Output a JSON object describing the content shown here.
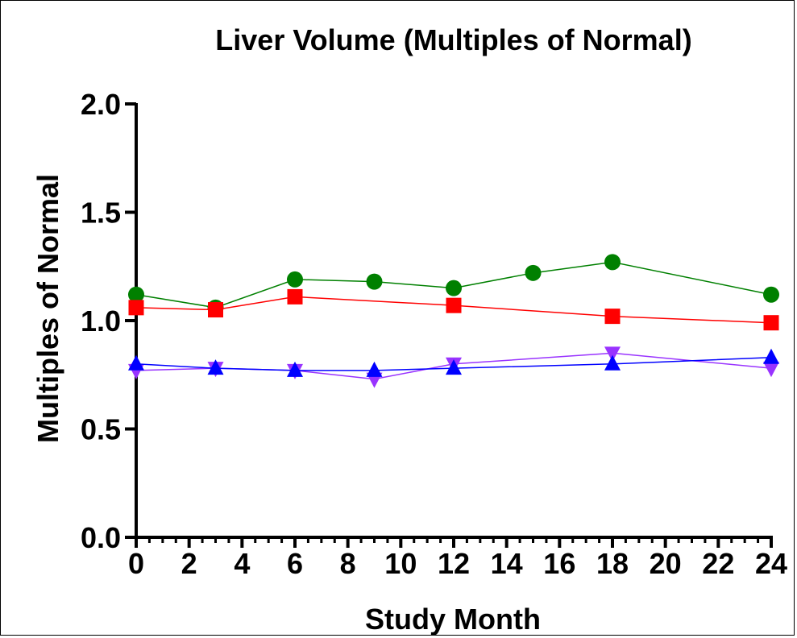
{
  "chart_data": {
    "type": "line",
    "title": "Liver Volume (Multiples of Normal)",
    "xlabel": "Study Month",
    "ylabel": "Multiples of Normal",
    "xlim": [
      0,
      24
    ],
    "ylim": [
      0,
      2.0
    ],
    "xticks": [
      0,
      2,
      4,
      6,
      8,
      10,
      12,
      14,
      16,
      18,
      20,
      22,
      24
    ],
    "xtick_labels": [
      "0",
      "2",
      "4",
      "6",
      "8",
      "10",
      "12",
      "14",
      "16",
      "18",
      "20",
      "22",
      "24"
    ],
    "yticks": [
      0.0,
      0.5,
      1.0,
      1.5,
      2.0
    ],
    "ytick_labels": [
      "0.0",
      "0.5",
      "1.0",
      "1.5",
      "2.0"
    ],
    "x_minor_step": 0.5,
    "grid": false,
    "series": [
      {
        "color": "#008000",
        "marker": "circle",
        "x": [
          0,
          3,
          6,
          9,
          12,
          15,
          18,
          24
        ],
        "y": [
          1.12,
          1.06,
          1.19,
          1.18,
          1.15,
          1.22,
          1.27,
          1.12
        ]
      },
      {
        "color": "#ff0000",
        "marker": "square",
        "x": [
          0,
          3,
          6,
          12,
          18,
          24
        ],
        "y": [
          1.06,
          1.05,
          1.11,
          1.07,
          1.02,
          0.99
        ]
      },
      {
        "color": "#9933ff",
        "marker": "triangle-down",
        "x": [
          0,
          3,
          6,
          9,
          12,
          18,
          24
        ],
        "y": [
          0.77,
          0.78,
          0.77,
          0.73,
          0.8,
          0.85,
          0.78
        ]
      },
      {
        "color": "#0000ff",
        "marker": "triangle-up",
        "x": [
          0,
          3,
          6,
          9,
          12,
          18,
          24
        ],
        "y": [
          0.8,
          0.78,
          0.77,
          0.77,
          0.78,
          0.8,
          0.83
        ]
      }
    ]
  }
}
